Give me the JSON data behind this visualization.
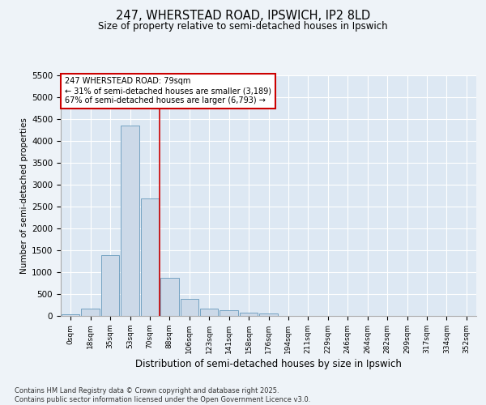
{
  "title_line1": "247, WHERSTEAD ROAD, IPSWICH, IP2 8LD",
  "title_line2": "Size of property relative to semi-detached houses in Ipswich",
  "xlabel": "Distribution of semi-detached houses by size in Ipswich",
  "ylabel": "Number of semi-detached properties",
  "bar_labels": [
    "0sqm",
    "18sqm",
    "35sqm",
    "53sqm",
    "70sqm",
    "88sqm",
    "106sqm",
    "123sqm",
    "141sqm",
    "158sqm",
    "176sqm",
    "194sqm",
    "211sqm",
    "229sqm",
    "246sqm",
    "264sqm",
    "282sqm",
    "299sqm",
    "317sqm",
    "334sqm",
    "352sqm"
  ],
  "bar_values": [
    30,
    160,
    1380,
    4350,
    2680,
    870,
    390,
    160,
    130,
    80,
    60,
    0,
    0,
    0,
    0,
    0,
    0,
    0,
    0,
    0,
    0
  ],
  "bar_color": "#ccd9e8",
  "bar_edge_color": "#6699bb",
  "vline_color": "#cc0000",
  "ann_text_line1": "247 WHERSTEAD ROAD: 79sqm",
  "ann_text_line2": "← 31% of semi-detached houses are smaller (3,189)",
  "ann_text_line3": "67% of semi-detached houses are larger (6,793) →",
  "ylim": [
    0,
    5500
  ],
  "yticks": [
    0,
    500,
    1000,
    1500,
    2000,
    2500,
    3000,
    3500,
    4000,
    4500,
    5000,
    5500
  ],
  "background_color": "#eef3f8",
  "plot_bg_color": "#dde8f3",
  "grid_color": "#ffffff",
  "footer": "Contains HM Land Registry data © Crown copyright and database right 2025.\nContains public sector information licensed under the Open Government Licence v3.0."
}
